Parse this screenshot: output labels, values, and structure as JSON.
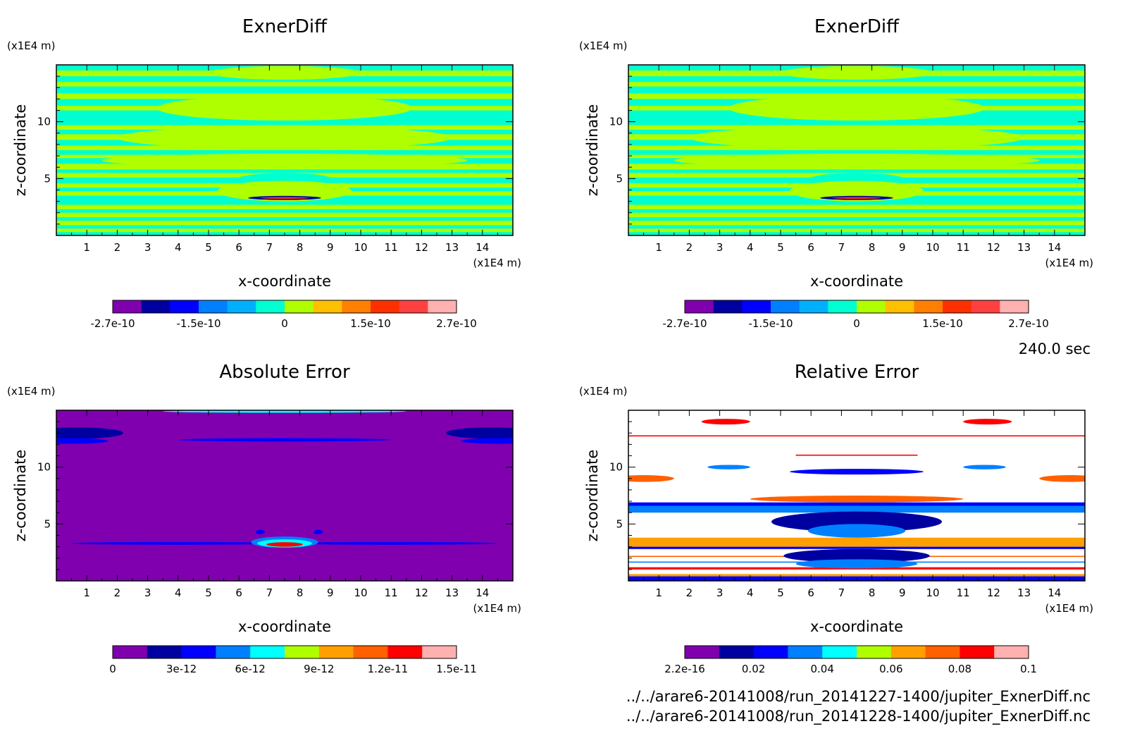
{
  "time_label": "240.0 sec",
  "footer": {
    "file1": "../../arare6-20141008/run_20141227-1400/jupiter_ExnerDiff.nc",
    "file2": "../../arare6-20141008/run_20141228-1400/jupiter_ExnerDiff.nc"
  },
  "chart_data": [
    {
      "type": "heatmap",
      "title": "ExnerDiff",
      "xlabel": "x-coordinate",
      "ylabel": "z-coordinate",
      "x_unit": "(x1E4 m)",
      "y_unit": "(x1E4 m)",
      "xlim": [
        0,
        15
      ],
      "ylim": [
        0,
        15
      ],
      "x_ticks": [
        1,
        2,
        3,
        4,
        5,
        6,
        7,
        8,
        9,
        10,
        11,
        12,
        13,
        14
      ],
      "y_ticks": [
        5,
        10
      ],
      "colorbar": {
        "colors": [
          "#8000b0",
          "#0000a0",
          "#0000ff",
          "#0080ff",
          "#00b0ff",
          "#00ffd0",
          "#b0ff00",
          "#ffc000",
          "#ff8000",
          "#ff3000",
          "#ff4040",
          "#ffb0b0"
        ],
        "tick_labels": [
          "-2.7e-10",
          "-1.5e-10",
          "0",
          "1.5e-10",
          "2.7e-10"
        ]
      }
    },
    {
      "type": "heatmap",
      "title": "ExnerDiff",
      "xlabel": "x-coordinate",
      "ylabel": "z-coordinate",
      "x_unit": "(x1E4 m)",
      "y_unit": "(x1E4 m)",
      "xlim": [
        0,
        15
      ],
      "ylim": [
        0,
        15
      ],
      "x_ticks": [
        1,
        2,
        3,
        4,
        5,
        6,
        7,
        8,
        9,
        10,
        11,
        12,
        13,
        14
      ],
      "y_ticks": [
        5,
        10
      ],
      "colorbar": {
        "colors": [
          "#8000b0",
          "#0000a0",
          "#0000ff",
          "#0080ff",
          "#00b0ff",
          "#00ffd0",
          "#b0ff00",
          "#ffc000",
          "#ff8000",
          "#ff3000",
          "#ff4040",
          "#ffb0b0"
        ],
        "tick_labels": [
          "-2.7e-10",
          "-1.5e-10",
          "0",
          "1.5e-10",
          "2.7e-10"
        ]
      }
    },
    {
      "type": "heatmap",
      "title": "Absolute Error",
      "xlabel": "x-coordinate",
      "ylabel": "z-coordinate",
      "x_unit": "(x1E4 m)",
      "y_unit": "(x1E4 m)",
      "xlim": [
        0,
        15
      ],
      "ylim": [
        0,
        15
      ],
      "x_ticks": [
        1,
        2,
        3,
        4,
        5,
        6,
        7,
        8,
        9,
        10,
        11,
        12,
        13,
        14
      ],
      "y_ticks": [
        5,
        10
      ],
      "colorbar": {
        "colors": [
          "#8000b0",
          "#0000a0",
          "#0000ff",
          "#0080ff",
          "#00ffff",
          "#b0ff00",
          "#ffa000",
          "#ff6000",
          "#ff0000",
          "#ffb0b0"
        ],
        "tick_labels": [
          "0",
          "3e-12",
          "6e-12",
          "9e-12",
          "1.2e-11",
          "1.5e-11"
        ]
      }
    },
    {
      "type": "heatmap",
      "title": "Relative Error",
      "xlabel": "x-coordinate",
      "ylabel": "z-coordinate",
      "x_unit": "(x1E4 m)",
      "y_unit": "(x1E4 m)",
      "xlim": [
        0,
        15
      ],
      "ylim": [
        0,
        15
      ],
      "x_ticks": [
        1,
        2,
        3,
        4,
        5,
        6,
        7,
        8,
        9,
        10,
        11,
        12,
        13,
        14
      ],
      "y_ticks": [
        5,
        10
      ],
      "colorbar": {
        "colors": [
          "#8000b0",
          "#0000a0",
          "#0000ff",
          "#0080ff",
          "#00ffff",
          "#b0ff00",
          "#ffa000",
          "#ff6000",
          "#ff0000",
          "#ffb0b0"
        ],
        "tick_labels": [
          "2.2e-16",
          "0.02",
          "0.04",
          "0.06",
          "0.08",
          "0.1"
        ]
      }
    }
  ]
}
